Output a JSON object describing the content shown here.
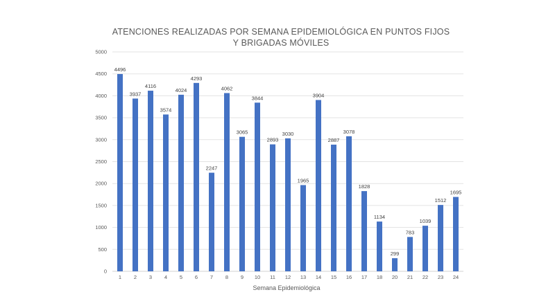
{
  "chart_data": {
    "type": "bar",
    "title_lines": [
      "ATENCIONES REALIZADAS POR SEMANA EPIDEMIOLÓGICA EN PUNTOS FIJOS",
      "Y BRIGADAS MÓVILES"
    ],
    "xlabel": "Semana Epidemiológica",
    "ylabel": "",
    "ylim": [
      0,
      5000
    ],
    "yticks": [
      "0",
      "500",
      "1000",
      "1500",
      "2000",
      "2500",
      "3000",
      "3500",
      "4000",
      "4500",
      "5000"
    ],
    "categories": [
      "1",
      "2",
      "3",
      "4",
      "5",
      "6",
      "7",
      "8",
      "9",
      "10",
      "11",
      "12",
      "13",
      "14",
      "15",
      "16",
      "17",
      "18",
      "20",
      "21",
      "22",
      "23",
      "24"
    ],
    "values": [
      4496,
      3937,
      4116,
      3574,
      4024,
      4293,
      2247,
      4062,
      3065,
      3844,
      2893,
      3030,
      1965,
      3904,
      2887,
      3078,
      1828,
      1134,
      299,
      783,
      1039,
      1512,
      1695
    ],
    "data_labels": [
      "4496",
      "3937",
      "4116",
      "3574",
      "4024",
      "4293",
      "2247",
      "4062",
      "3065",
      "3844",
      "2893",
      "3030",
      "1965",
      "3904",
      "2887",
      "3078",
      "1828",
      "1134",
      "299",
      "783",
      "1039",
      "1512",
      "1695"
    ],
    "grid": true,
    "legend": "none",
    "colors": {
      "bar": "#4472c4",
      "grid": "#e3e3e3",
      "text": "#595959"
    }
  }
}
